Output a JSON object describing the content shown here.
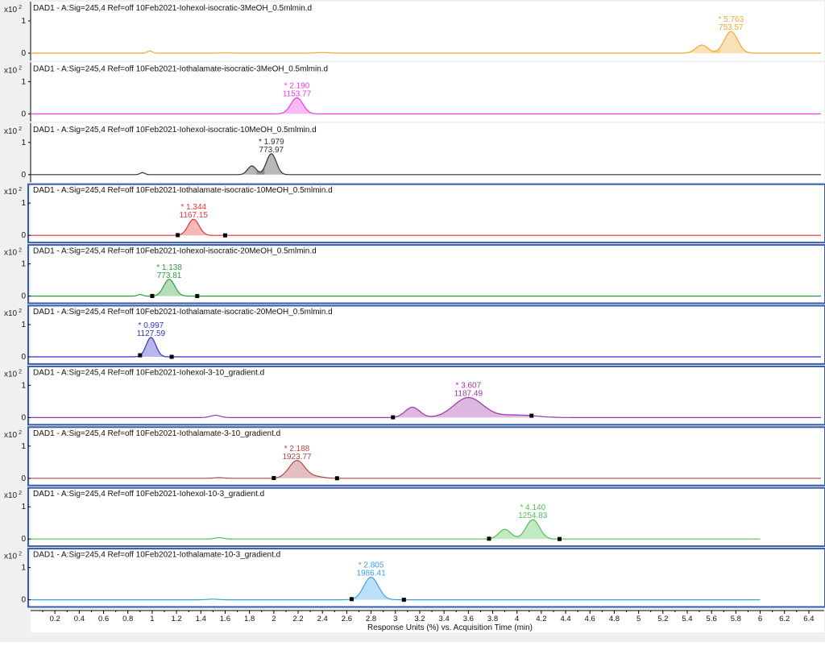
{
  "window": {
    "scale_label": "x10",
    "scale_exp": "2",
    "x_axis_title": "Response Units (%) vs. Acquisition Time (min)"
  },
  "chart_data": {
    "type": "line",
    "x_range": [
      0,
      6.5
    ],
    "x_ticks": [
      0.2,
      0.4,
      0.6,
      0.8,
      1,
      1.2,
      1.4,
      1.6,
      1.8,
      2,
      2.2,
      2.4,
      2.6,
      2.8,
      3,
      3.2,
      3.4,
      3.6,
      3.8,
      4,
      4.2,
      4.4,
      4.6,
      4.8,
      5,
      5.2,
      5.4,
      5.6,
      5.8,
      6,
      6.2,
      6.4
    ],
    "x_tick_labels": [
      "0.2",
      "0.4",
      "0.6",
      "0.8",
      "1",
      "1.2",
      "1.4",
      "1.6",
      "1.8",
      "2",
      "2.2",
      "2.4",
      "2.6",
      "2.8",
      "3",
      "3.2",
      "3.4",
      "3.6",
      "3.8",
      "4",
      "4.2",
      "4.4",
      "4.6",
      "4.8",
      "5",
      "5.2",
      "5.4",
      "5.6",
      "5.8",
      "6",
      "6.2",
      "6.4"
    ],
    "y_ticks": [
      "1",
      "0"
    ],
    "xlabel": "Response Units (%) vs. Acquisition Time (min)",
    "panels": [
      {
        "title": "DAD1 - A:Sig=245,4  Ref=off 10Feb2021-Iohexol-isocratic-3MeOH_0.5mlmin.d",
        "color": "#f0a830",
        "selected": false,
        "x_end": 6.5,
        "apex_label": "* 5.763",
        "area_label": "753.57",
        "peaks": [
          [
            0.98,
            0.07,
            0.02
          ],
          [
            1.6,
            0.01,
            0.05
          ],
          [
            2.4,
            0.02,
            0.05
          ],
          [
            5.52,
            0.25,
            0.05
          ],
          [
            5.76,
            0.67,
            0.055
          ]
        ],
        "integration_marks": []
      },
      {
        "title": "DAD1 - A:Sig=245,4  Ref=off 10Feb2021-Iothalamate-isocratic-3MeOH_0.5mlmin.d",
        "color": "#ec3ce6",
        "selected": false,
        "x_end": 6.5,
        "apex_label": "* 2.190",
        "area_label": "1153.77",
        "peaks": [
          [
            2.19,
            0.5,
            0.05
          ]
        ],
        "integration_marks": []
      },
      {
        "title": "DAD1 - A:Sig=245,4  Ref=off 10Feb2021-Iohexol-isocratic-10MeOH_0.5mlmin.d",
        "color": "#333333",
        "selected": false,
        "x_end": 6.5,
        "apex_label": "* 1.979",
        "area_label": "773.97",
        "peaks": [
          [
            0.92,
            0.06,
            0.02
          ],
          [
            1.82,
            0.27,
            0.035
          ],
          [
            1.98,
            0.65,
            0.04
          ]
        ],
        "integration_marks": []
      },
      {
        "title": "DAD1 - A:Sig=245,4  Ref=off 10Feb2021-Iothalamate-isocratic-10MeOH_0.5mlmin.d",
        "color": "#e03434",
        "selected": true,
        "x_end": 6.5,
        "apex_label": "* 1.344",
        "area_label": "1167.15",
        "peaks": [
          [
            1.34,
            0.5,
            0.045
          ]
        ],
        "integration_marks": [
          1.21,
          1.6
        ]
      },
      {
        "title": "DAD1 - A:Sig=245,4  Ref=off 10Feb2021-Iohexol-isocratic-20MeOH_0.5mlmin.d",
        "color": "#2e9b3c",
        "selected": true,
        "x_end": 6.5,
        "apex_label": "* 1.138",
        "area_label": "773.81",
        "peaks": [
          [
            0.9,
            0.05,
            0.02
          ],
          [
            1.14,
            0.52,
            0.045
          ]
        ],
        "integration_marks": [
          1.0,
          1.37
        ]
      },
      {
        "title": "DAD1 - A:Sig=245,4  Ref=off 10Feb2021-Iothalamate-isocratic-20MeOH_0.5mlmin.d",
        "color": "#3232c8",
        "selected": true,
        "x_end": 6.5,
        "apex_label": "* 0.997",
        "area_label": "1127.59",
        "peaks": [
          [
            0.99,
            0.6,
            0.04
          ]
        ],
        "integration_marks": [
          0.9,
          1.16
        ]
      },
      {
        "title": "DAD1 - A:Sig=245,4  Ref=off 10Feb2021-Iohexol-3-10_gradient.d",
        "color": "#9b34a8",
        "selected": true,
        "x_end": 6.5,
        "apex_label": "* 3.607",
        "area_label": "1187.49",
        "peaks": [
          [
            1.52,
            0.07,
            0.04
          ],
          [
            3.14,
            0.32,
            0.06
          ],
          [
            3.6,
            0.62,
            0.12
          ],
          [
            4.0,
            0.08,
            0.15
          ]
        ],
        "integration_marks": [
          2.98,
          4.12
        ]
      },
      {
        "title": "DAD1 - A:Sig=245,4  Ref=off 10Feb2021-Iothalamate-3-10_gradient.d",
        "color": "#b04848",
        "selected": true,
        "x_end": 6.5,
        "apex_label": "* 2.188",
        "area_label": "1923.77",
        "peaks": [
          [
            1.55,
            0.02,
            0.04
          ],
          [
            2.19,
            0.55,
            0.065
          ],
          [
            2.35,
            0.05,
            0.06
          ]
        ],
        "integration_marks": [
          2.0,
          2.52
        ]
      },
      {
        "title": "DAD1 - A:Sig=245,4  Ref=off 10Feb2021-Iohexol-10-3_gradient.d",
        "color": "#4fc24f",
        "selected": true,
        "x_end": 6.0,
        "apex_label": "* 4.140",
        "area_label": "1254.83",
        "peaks": [
          [
            1.55,
            0.04,
            0.04
          ],
          [
            3.9,
            0.3,
            0.05
          ],
          [
            4.13,
            0.6,
            0.055
          ]
        ],
        "integration_marks": [
          3.77,
          4.35
        ]
      },
      {
        "title": "DAD1 - A:Sig=245,4  Ref=off 10Feb2021-Iothalamate-10-3_gradient.d",
        "color": "#39a2e6",
        "selected": true,
        "x_end": 6.0,
        "apex_label": "* 2.805",
        "area_label": "1986.41",
        "peaks": [
          [
            1.5,
            0.02,
            0.04
          ],
          [
            2.8,
            0.7,
            0.06
          ]
        ],
        "integration_marks": [
          2.64,
          3.07
        ]
      }
    ]
  }
}
